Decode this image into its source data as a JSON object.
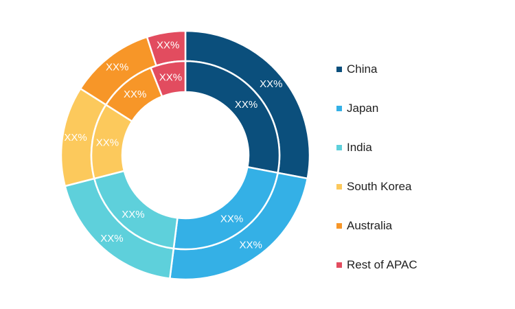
{
  "chart_data": {
    "type": "pie",
    "style": "nested-donut",
    "categories": [
      "China",
      "Japan",
      "India",
      "South Korea",
      "Australia",
      "Rest of APAC"
    ],
    "colors": [
      "#0b4f7c",
      "#34b0e6",
      "#5ed0db",
      "#fcc95c",
      "#f79628",
      "#e24c5f"
    ],
    "series": [
      {
        "values": [
          28,
          24,
          19,
          13,
          11,
          5
        ],
        "labels": [
          "XX%",
          "XX%",
          "XX%",
          "XX%",
          "XX%",
          "XX%"
        ]
      },
      {
        "values": [
          28,
          24,
          19,
          13,
          10,
          6
        ],
        "labels": [
          "XX%",
          "XX%",
          "XX%",
          "XX%",
          "XX%",
          "XX%"
        ]
      }
    ],
    "legend_position": "right",
    "grid": false
  }
}
